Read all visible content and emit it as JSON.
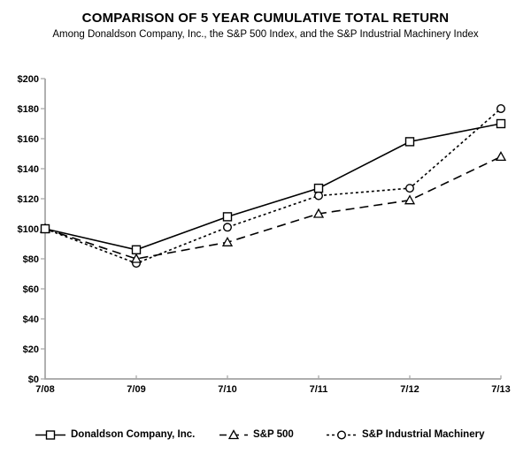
{
  "header": {
    "title": "COMPARISON OF 5 YEAR CUMULATIVE TOTAL RETURN",
    "subtitle": "Among Donaldson Company, Inc., the S&P 500 Index, and the S&P Industrial Machinery Index"
  },
  "chart_data": {
    "type": "line",
    "categories": [
      "7/08",
      "7/09",
      "7/10",
      "7/11",
      "7/12",
      "7/13"
    ],
    "series": [
      {
        "name": "Donaldson Company, Inc.",
        "marker": "square",
        "line": "solid",
        "values": [
          100,
          86,
          108,
          127,
          158,
          170
        ]
      },
      {
        "name": "S&P 500",
        "marker": "triangle",
        "line": "dashed",
        "values": [
          100,
          80,
          91,
          110,
          119,
          148
        ]
      },
      {
        "name": "S&P Industrial Machinery",
        "marker": "circle",
        "line": "dotted",
        "values": [
          100,
          77,
          101,
          122,
          127,
          180
        ]
      }
    ],
    "ylabel": "",
    "xlabel": "",
    "ylim": [
      0,
      200
    ],
    "y_tick_step": 20,
    "y_tick_labels": [
      "$0",
      "$20",
      "$40",
      "$60",
      "$80",
      "$100",
      "$120",
      "$140",
      "$160",
      "$180",
      "$200"
    ],
    "grid": false,
    "legend_position": "bottom",
    "colors": {
      "series_stroke": "#000000",
      "marker_fill": "#ffffff",
      "axis": "#a3a3a3"
    }
  }
}
